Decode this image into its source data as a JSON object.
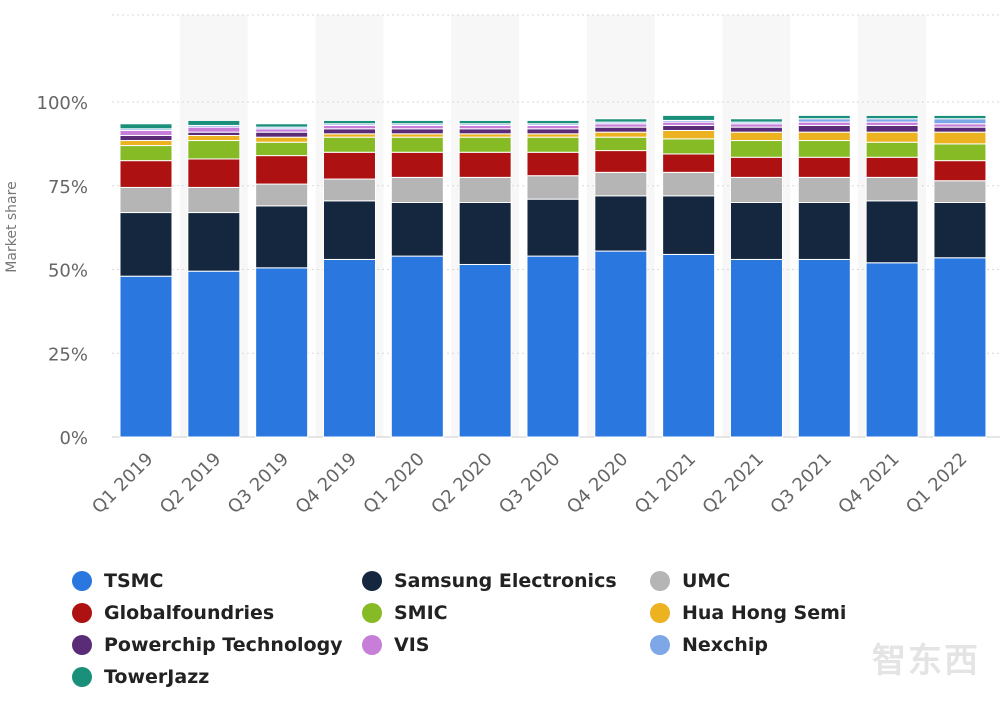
{
  "chart_data": {
    "type": "bar",
    "stacked": true,
    "ylabel": "Market share",
    "ylim": [
      0,
      100
    ],
    "yticks": [
      "0%",
      "25%",
      "50%",
      "75%",
      "100%"
    ],
    "ytick_values": [
      0,
      25,
      50,
      75,
      100
    ],
    "grid": true,
    "legend_position": "bottom",
    "categories": [
      "Q1 2019",
      "Q2 2019",
      "Q3 2019",
      "Q4 2019",
      "Q1 2020",
      "Q2 2020",
      "Q3 2020",
      "Q4 2020",
      "Q1 2021",
      "Q2 2021",
      "Q3 2021",
      "Q4 2021",
      "Q1 2022"
    ],
    "series": [
      {
        "name": "TSMC",
        "color": "#2a77df",
        "values": [
          48,
          49.5,
          50.5,
          53,
          54,
          51.5,
          54,
          55.5,
          54.5,
          53,
          53,
          52,
          53.5
        ]
      },
      {
        "name": "Samsung Electronics",
        "color": "#14273f",
        "values": [
          19,
          17.5,
          18.5,
          17.5,
          16,
          18.5,
          17,
          16.5,
          17.5,
          17,
          17,
          18.5,
          16.5
        ]
      },
      {
        "name": "UMC",
        "color": "#b5b5b5",
        "values": [
          7.5,
          7.5,
          6.5,
          6.5,
          7.5,
          7.5,
          7,
          7,
          7,
          7.5,
          7.5,
          7,
          6.5
        ]
      },
      {
        "name": "Globalfoundries",
        "color": "#ae1111",
        "values": [
          8,
          8.5,
          8.5,
          8,
          7.5,
          7.5,
          7,
          6.5,
          5.5,
          6,
          6,
          6,
          6
        ]
      },
      {
        "name": "SMIC",
        "color": "#86bb26",
        "values": [
          4.5,
          5.5,
          4,
          4.5,
          4.5,
          4.5,
          4.5,
          4,
          4.5,
          5,
          5,
          4.5,
          5
        ]
      },
      {
        "name": "Hua Hong Semi",
        "color": "#edb21f",
        "values": [
          1.5,
          1.5,
          1.5,
          1,
          1,
          1,
          1,
          1.5,
          2.5,
          2.5,
          2.5,
          3,
          3.5
        ]
      },
      {
        "name": "Powerchip Technology",
        "color": "#5a2c78",
        "values": [
          1.5,
          1,
          1.5,
          1.5,
          1.5,
          1.5,
          1.5,
          1.5,
          1.5,
          1.5,
          2,
          2,
          1.5
        ]
      },
      {
        "name": "VIS",
        "color": "#c77ed9",
        "values": [
          1.5,
          1.5,
          1,
          1,
          1,
          1,
          1,
          1,
          1,
          1,
          1,
          1,
          1
        ]
      },
      {
        "name": "Nexchip",
        "color": "#7ea7e8",
        "values": [
          0.5,
          0.5,
          0.5,
          0.5,
          0.5,
          0.5,
          0.5,
          0.5,
          0.5,
          0.5,
          1,
          1,
          1.5
        ]
      },
      {
        "name": "TowerJazz",
        "color": "#1a8f7a",
        "values": [
          1.5,
          1.5,
          1,
          1,
          1,
          1,
          1,
          1,
          1.5,
          1,
          1,
          1,
          1
        ]
      }
    ]
  },
  "legend_order": [
    0,
    1,
    2,
    3,
    4,
    5,
    6,
    7,
    8,
    9
  ],
  "watermark": "智东西"
}
